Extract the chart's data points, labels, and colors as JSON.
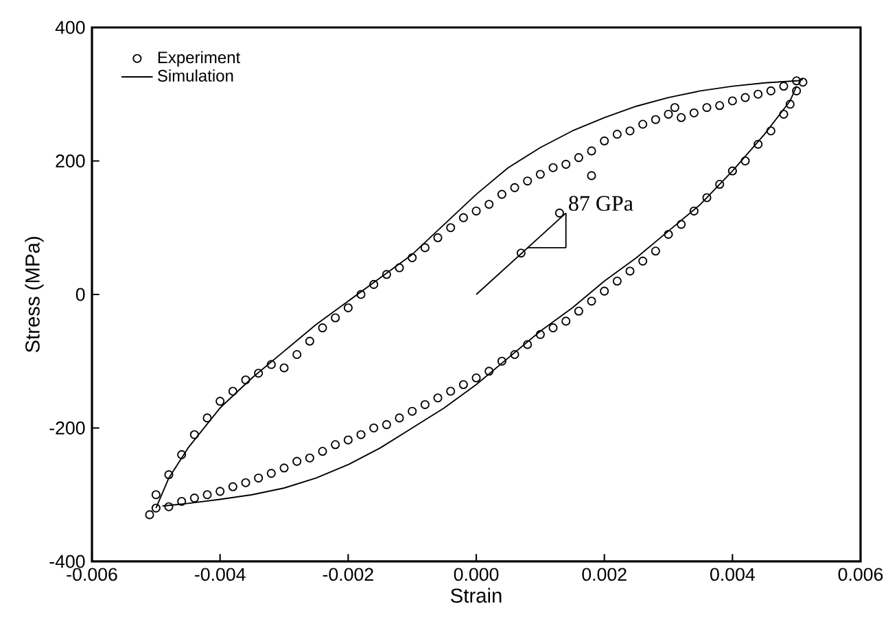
{
  "chart_data": {
    "type": "scatter",
    "xlabel": "Strain",
    "ylabel": "Stress (MPa)",
    "xlim": [
      -0.006,
      0.006
    ],
    "ylim": [
      -400,
      400
    ],
    "xticks": [
      {
        "value": -0.006,
        "label": "-0.006"
      },
      {
        "value": -0.004,
        "label": "-0.004"
      },
      {
        "value": -0.002,
        "label": "-0.002"
      },
      {
        "value": 0,
        "label": "0.000"
      },
      {
        "value": 0.002,
        "label": "0.002"
      },
      {
        "value": 0.004,
        "label": "0.004"
      },
      {
        "value": 0.006,
        "label": "0.006"
      }
    ],
    "yticks": [
      -400,
      -200,
      0,
      200,
      400
    ],
    "grid": false,
    "legend": "top left",
    "annotations": [
      {
        "text": "87 GPa",
        "x": 0.0014,
        "y": 122
      }
    ],
    "series": [
      {
        "name": "Experiment",
        "marker": "circle",
        "color": "#000000",
        "x": [
          -0.0051,
          -0.005,
          -0.0048,
          -0.0046,
          -0.0044,
          -0.0042,
          -0.004,
          -0.0038,
          -0.0036,
          -0.0034,
          -0.0032,
          -0.003,
          -0.0028,
          -0.0026,
          -0.0024,
          -0.0022,
          -0.002,
          -0.0018,
          -0.0016,
          -0.0014,
          -0.0012,
          -0.001,
          -0.0008,
          -0.0006,
          -0.0004,
          -0.0002,
          0,
          0.0002,
          0.0004,
          0.0006,
          0.0008,
          0.001,
          0.0012,
          0.0014,
          0.0016,
          0.0018,
          0.002,
          0.0022,
          0.0024,
          0.0026,
          0.0028,
          0.003,
          0.0031,
          0.0032,
          0.0034,
          0.0036,
          0.0038,
          0.004,
          0.0042,
          0.0044,
          0.0046,
          0.0048,
          0.005,
          0.0051,
          0.0007,
          0.0013,
          0.0018,
          0.005,
          0.0049,
          0.0048,
          0.0046,
          0.0044,
          0.0042,
          0.004,
          0.0038,
          0.0036,
          0.0034,
          0.0032,
          0.003,
          0.0028,
          0.0026,
          0.0024,
          0.0022,
          0.002,
          0.0018,
          0.0016,
          0.0014,
          0.0012,
          0.001,
          0.0008,
          0.0006,
          0.0004,
          0.0002,
          0,
          -0.0002,
          -0.0004,
          -0.0006,
          -0.0008,
          -0.001,
          -0.0012,
          -0.0014,
          -0.0016,
          -0.0018,
          -0.002,
          -0.0022,
          -0.0024,
          -0.0026,
          -0.0028,
          -0.003,
          -0.0032,
          -0.0034,
          -0.0036,
          -0.0038,
          -0.004,
          -0.0042,
          -0.0044,
          -0.0046,
          -0.0048,
          -0.005
        ],
        "values": [
          -330,
          -300,
          -270,
          -240,
          -210,
          -185,
          -160,
          -145,
          -128,
          -118,
          -105,
          -110,
          -90,
          -70,
          -50,
          -35,
          -20,
          0,
          15,
          30,
          40,
          55,
          70,
          85,
          100,
          115,
          125,
          135,
          150,
          160,
          170,
          180,
          190,
          195,
          205,
          215,
          230,
          240,
          245,
          255,
          262,
          270,
          280,
          265,
          272,
          280,
          283,
          290,
          295,
          300,
          305,
          312,
          320,
          318,
          62,
          122,
          178,
          305,
          285,
          270,
          245,
          225,
          200,
          185,
          165,
          145,
          125,
          105,
          90,
          65,
          50,
          35,
          20,
          5,
          -10,
          -25,
          -40,
          -50,
          -60,
          -75,
          -90,
          -100,
          -115,
          -125,
          -135,
          -145,
          -155,
          -165,
          -175,
          -185,
          -195,
          -200,
          -210,
          -218,
          -225,
          -235,
          -245,
          -250,
          -260,
          -268,
          -275,
          -282,
          -288,
          -295,
          -300,
          -305,
          -310,
          -318,
          -320
        ]
      },
      {
        "name": "Simulation",
        "type": "line",
        "color": "#000000",
        "x": [
          -0.005,
          -0.0048,
          -0.0045,
          -0.004,
          -0.0035,
          -0.003,
          -0.0025,
          -0.002,
          -0.0015,
          -0.001,
          -0.0005,
          0,
          0.0005,
          0.001,
          0.0015,
          0.002,
          0.0025,
          0.003,
          0.0035,
          0.004,
          0.0045,
          0.005,
          0.0051
        ],
        "values": [
          -320,
          -275,
          -230,
          -170,
          -125,
          -85,
          -45,
          -10,
          25,
          60,
          105,
          150,
          190,
          220,
          245,
          265,
          282,
          295,
          305,
          312,
          317,
          320,
          322
        ]
      },
      {
        "type": "line",
        "color": "#000000",
        "x": [
          -0.0049,
          -0.0045,
          -0.004,
          -0.0035,
          -0.003,
          -0.0025,
          -0.002,
          -0.0015,
          -0.001,
          -0.0005,
          0,
          0.0005,
          0.001,
          0.0015,
          0.002,
          0.0025,
          0.003,
          0.0035,
          0.004,
          0.0045,
          0.0049,
          0.005
        ],
        "values": [
          -317,
          -313,
          -307,
          -300,
          -290,
          -275,
          -255,
          -230,
          -200,
          -170,
          -135,
          -95,
          -55,
          -20,
          20,
          55,
          95,
          135,
          185,
          240,
          290,
          312
        ]
      },
      {
        "type": "line",
        "color": "#000000",
        "x": [
          0,
          0.0014
        ],
        "values": [
          0,
          122
        ]
      },
      {
        "type": "line",
        "color": "#000000",
        "x": [
          0.0008,
          0.0014
        ],
        "values": [
          70,
          70
        ]
      },
      {
        "type": "line",
        "color": "#000000",
        "x": [
          0.0014,
          0.0014
        ],
        "values": [
          70,
          122
        ]
      }
    ]
  }
}
